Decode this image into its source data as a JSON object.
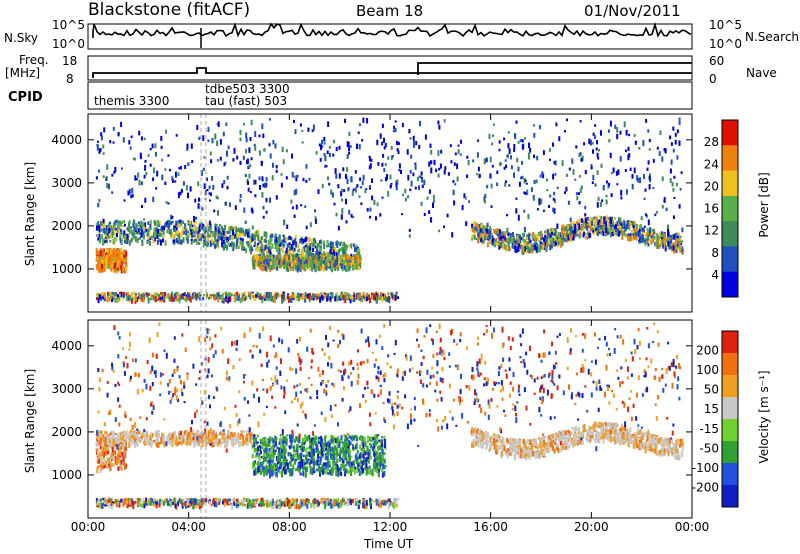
{
  "header": {
    "station": "Blackstone (fitACF)",
    "beam": "Beam 18",
    "date": "01/Nov/2011"
  },
  "top_panels": {
    "nsky_label": "N.Sky",
    "nsearch_label": "N.Search",
    "noise_ticks": [
      "10^5",
      "10^0"
    ],
    "freq_label_1": "Freq.",
    "freq_label_2": "[MHz]",
    "freq_ticks": [
      "18",
      "8"
    ],
    "nave_label": "Nave",
    "nave_ticks": [
      "60",
      "0"
    ],
    "cpid_label": "CPID",
    "cpid_entries": [
      {
        "text": "themis 3300",
        "x_hours": 0.05
      },
      {
        "text": "tdbe503 3300",
        "x_hours": 4.7
      },
      {
        "text": "tau (fast) 503",
        "x_hours": 4.7
      }
    ]
  },
  "colors": {
    "power_scale": [
      "#0000e0",
      "#2050c0",
      "#3c8c5c",
      "#58b048",
      "#f0c020",
      "#f08010",
      "#e01000"
    ],
    "velocity_scale": [
      "#1020c0",
      "#2050e0",
      "#30a030",
      "#70d030",
      "#c8c8c8",
      "#f0a020",
      "#f07010",
      "#e02010"
    ]
  },
  "chart_data": [
    {
      "type": "heatmap",
      "name": "power",
      "ylabel": "Slant Range [km]",
      "yticks": [
        1000,
        2000,
        3000,
        4000
      ],
      "ylim": [
        0,
        4600
      ],
      "xlim_hours": [
        0,
        24
      ],
      "colorbar_label": "Power [dB]",
      "colorbar_ticks": [
        4,
        8,
        12,
        16,
        20,
        24,
        28
      ],
      "colorbar_range": [
        0,
        32
      ]
    },
    {
      "type": "heatmap",
      "name": "velocity",
      "ylabel": "Slant Range [km]",
      "yticks": [
        1000,
        2000,
        3000,
        4000
      ],
      "ylim": [
        0,
        4600
      ],
      "xlim_hours": [
        0,
        24
      ],
      "colorbar_label": "Velocity [m s⁻¹]",
      "colorbar_ticks": [
        -200,
        -100,
        -50,
        -15,
        15,
        50,
        100,
        200
      ]
    }
  ],
  "xaxis": {
    "label": "Time UT",
    "tick_labels": [
      "00:00",
      "04:00",
      "08:00",
      "12:00",
      "16:00",
      "20:00",
      "00:00"
    ]
  }
}
